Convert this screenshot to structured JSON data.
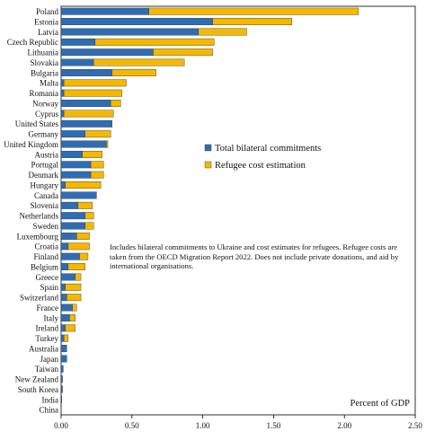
{
  "chart_data": {
    "type": "bar",
    "orientation": "horizontal",
    "stacked": true,
    "categories": [
      "Poland",
      "Estonia",
      "Latvia",
      "Czech Republic",
      "Lithuania",
      "Slovakia",
      "Bulgaria",
      "Malta",
      "Romania",
      "Norway",
      "Cyprus",
      "United States",
      "Germany",
      "United Kingdom",
      "Austria",
      "Portugal",
      "Denmark",
      "Hungary",
      "Canada",
      "Slovenia",
      "Netherlands",
      "Sweden",
      "Luxembourg",
      "Croatia",
      "Finland",
      "Belgium",
      "Greece",
      "Spain",
      "Switzerland",
      "France",
      "Italy",
      "Ireland",
      "Turkey",
      "Australia",
      "Japan",
      "Taiwan",
      "New Zealand",
      "South Korea",
      "India",
      "China"
    ],
    "series": [
      {
        "name": "Total bilateral commitments",
        "color": "#2e6db3",
        "values": [
          0.62,
          1.07,
          0.97,
          0.24,
          0.65,
          0.23,
          0.36,
          0.02,
          0.02,
          0.35,
          0.02,
          0.36,
          0.17,
          0.32,
          0.15,
          0.21,
          0.21,
          0.03,
          0.25,
          0.12,
          0.17,
          0.17,
          0.11,
          0.05,
          0.13,
          0.05,
          0.1,
          0.03,
          0.04,
          0.08,
          0.06,
          0.03,
          0.02,
          0.04,
          0.04,
          0.015,
          0.01,
          0.01,
          0.005,
          0.0
        ]
      },
      {
        "name": "Refugee cost estimation",
        "color": "#f5b800",
        "values": [
          1.48,
          0.56,
          0.34,
          0.84,
          0.42,
          0.64,
          0.31,
          0.44,
          0.41,
          0.07,
          0.35,
          0.0,
          0.18,
          0.01,
          0.14,
          0.09,
          0.09,
          0.25,
          0.0,
          0.1,
          0.06,
          0.06,
          0.09,
          0.15,
          0.06,
          0.12,
          0.04,
          0.11,
          0.1,
          0.03,
          0.04,
          0.07,
          0.03,
          0.0,
          0.0,
          0.0,
          0.0,
          0.0,
          0.0,
          0.0
        ]
      }
    ],
    "xlim": [
      0,
      2.5
    ],
    "xticks": [
      "0.00",
      "0.50",
      "1.00",
      "1.50",
      "2.00",
      "2.50"
    ],
    "xtick_values": [
      0,
      0.5,
      1.0,
      1.5,
      2.0,
      2.5
    ],
    "unit_label": "Percent of GDP",
    "note": "Includes bilateral commitments to Ukraine and cost estimates for refugees. Refugee costs are taken from the OECD Migration Report 2022. Does not include private donations, and aid by international organisations.",
    "legend_position": "center-right",
    "grid": false
  }
}
